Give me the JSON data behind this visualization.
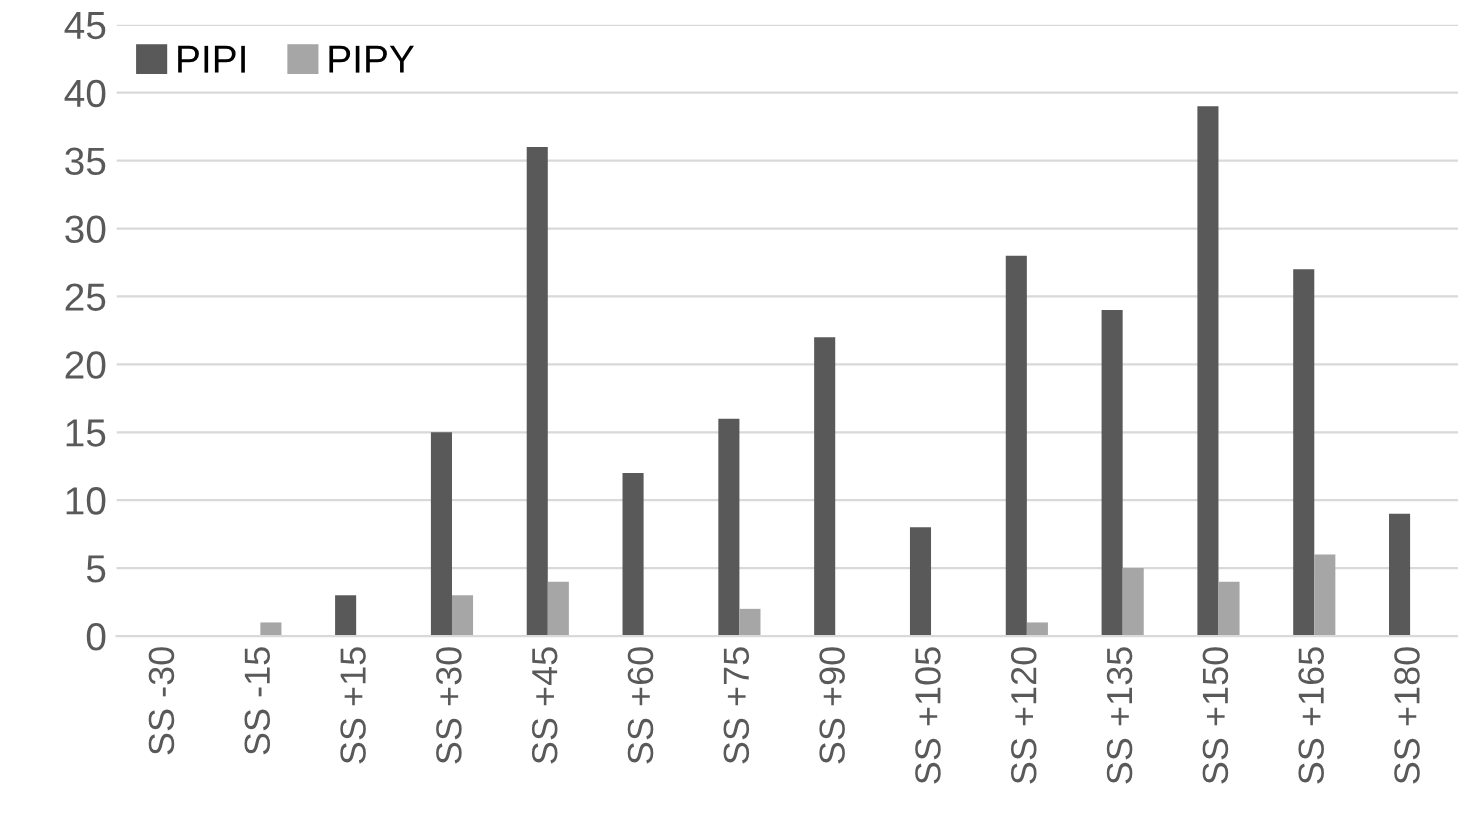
{
  "chart_data": {
    "type": "bar",
    "categories": [
      "SS -30",
      "SS -15",
      "SS +15",
      "SS +30",
      "SS +45",
      "SS +60",
      "SS +75",
      "SS +90",
      "SS +105",
      "SS +120",
      "SS +135",
      "SS +150",
      "SS +165",
      "SS +180"
    ],
    "series": [
      {
        "name": "PIPI",
        "color": "#595959",
        "values": [
          null,
          null,
          3,
          15,
          36,
          12,
          16,
          22,
          8,
          28,
          24,
          39,
          27,
          9
        ]
      },
      {
        "name": "PIPY",
        "color": "#a6a6a6",
        "values": [
          null,
          1,
          null,
          3,
          4,
          null,
          2,
          null,
          null,
          1,
          5,
          4,
          6,
          null
        ]
      }
    ],
    "ylim": [
      0,
      45
    ],
    "yticks": [
      0,
      5,
      10,
      15,
      20,
      25,
      30,
      35,
      40,
      45
    ],
    "grid": "y",
    "legend": "top left"
  }
}
